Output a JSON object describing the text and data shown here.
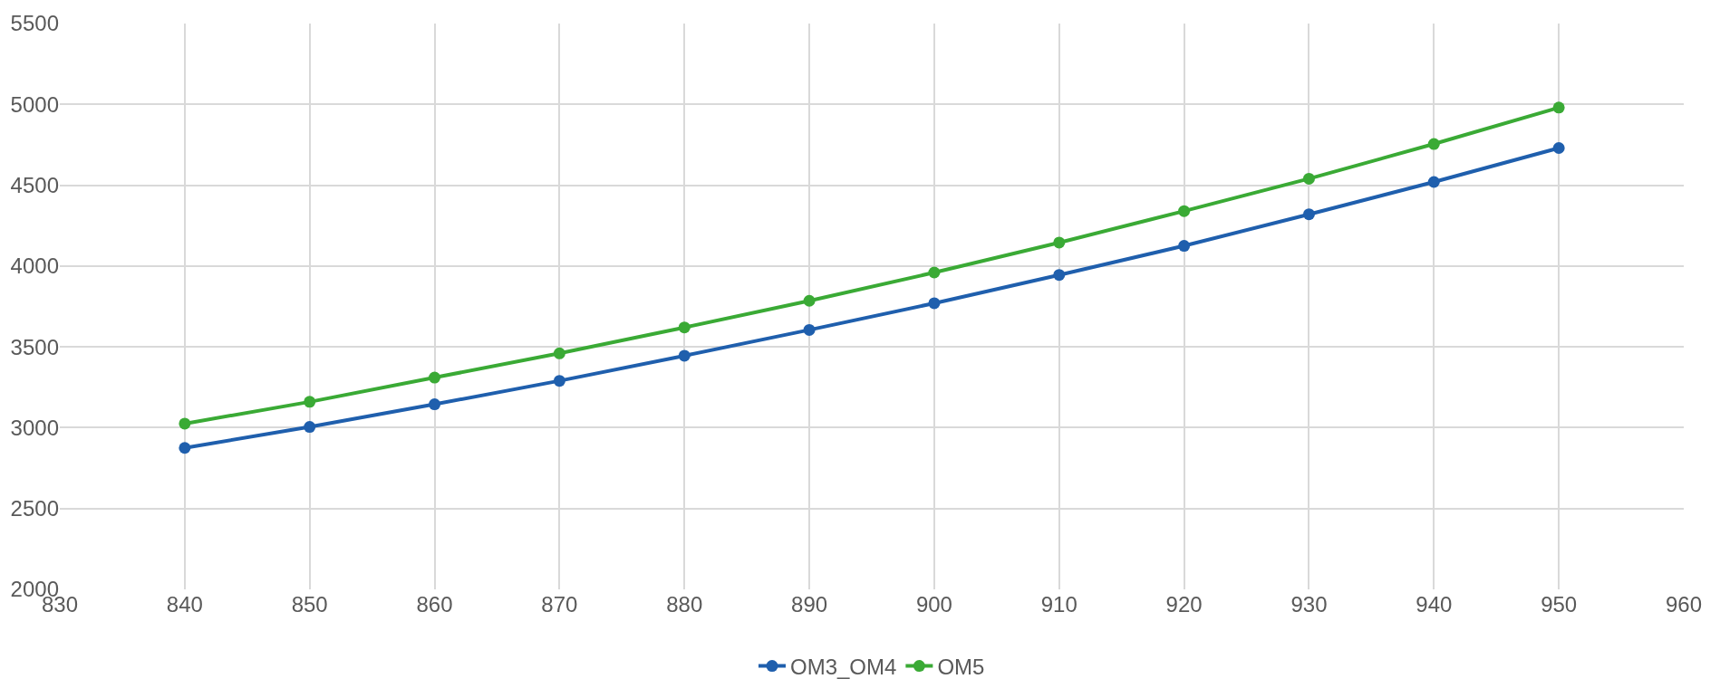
{
  "chart_data": {
    "type": "line",
    "x": [
      840,
      850,
      860,
      870,
      880,
      890,
      900,
      910,
      920,
      930,
      940,
      950
    ],
    "series": [
      {
        "name": "OM3_OM4",
        "color": "#1f5fad",
        "values": [
          2875,
          3005,
          3145,
          3290,
          3445,
          3605,
          3770,
          3945,
          4125,
          4320,
          4520,
          4730
        ]
      },
      {
        "name": "OM5",
        "color": "#3aaa35",
        "values": [
          3025,
          3160,
          3310,
          3460,
          3620,
          3785,
          3960,
          4145,
          4340,
          4540,
          4755,
          4980
        ]
      }
    ],
    "xlim": [
      830,
      960
    ],
    "xticks": [
      830,
      840,
      850,
      860,
      870,
      880,
      890,
      900,
      910,
      920,
      930,
      940,
      950,
      960
    ],
    "ylim": [
      2000,
      5500
    ],
    "yticks": [
      2000,
      2500,
      3000,
      3500,
      4000,
      4500,
      5000,
      5500
    ],
    "grid": true,
    "legend": "bottom",
    "marker": "circle",
    "line_style": "solid"
  }
}
